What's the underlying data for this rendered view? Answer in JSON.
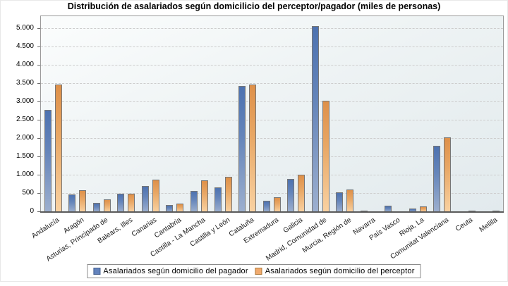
{
  "title": "Distribución de asalariados según domicilicio del perceptor/pagador (miles de personas)",
  "chart_data": {
    "type": "bar",
    "title": "Distribución de asalariados según domicilicio del perceptor/pagador (miles de personas)",
    "categories": [
      "Andalucía",
      "Aragón",
      "Asturias, Principado de",
      "Balears, Illes",
      "Canarias",
      "Cantabria",
      "Castilla - La Mancha",
      "Castilla y León",
      "Cataluña",
      "Extremadura",
      "Galicia",
      "Madrid, Comunidad de",
      "Murcia, Región de",
      "Navarra",
      "País Vasco",
      "Rioja, La",
      "Comunitat Valenciana",
      "Ceuta",
      "Melilla"
    ],
    "series": [
      {
        "name": "Asalariados según domicilio del pagador",
        "color": "#5578b4",
        "values": [
          2790,
          490,
          260,
          505,
          720,
          190,
          575,
          680,
          3450,
          315,
          910,
          5080,
          540,
          40,
          170,
          100,
          1810,
          20,
          15
        ]
      },
      {
        "name": "Asalariados según domicilio del perceptor",
        "color": "#eca363",
        "values": [
          3480,
          590,
          350,
          510,
          880,
          225,
          860,
          960,
          3475,
          410,
          1015,
          3040,
          620,
          5,
          5,
          155,
          2035,
          35,
          35
        ]
      }
    ],
    "ylabel": "",
    "xlabel": "",
    "ylim": [
      0,
      5350
    ],
    "yticks": [
      0,
      500,
      1000,
      1500,
      2000,
      2500,
      3000,
      3500,
      4000,
      4500,
      5000
    ],
    "ytick_labels": [
      "0",
      "500",
      "1.000",
      "1.500",
      "2.000",
      "2.500",
      "3.000",
      "3.500",
      "4.000",
      "4.500",
      "5.000"
    ],
    "grid": "horizontal-dashed",
    "legend_position": "bottom-center",
    "plot_background": [
      "#fbfdfd",
      "#e2eaed"
    ]
  }
}
